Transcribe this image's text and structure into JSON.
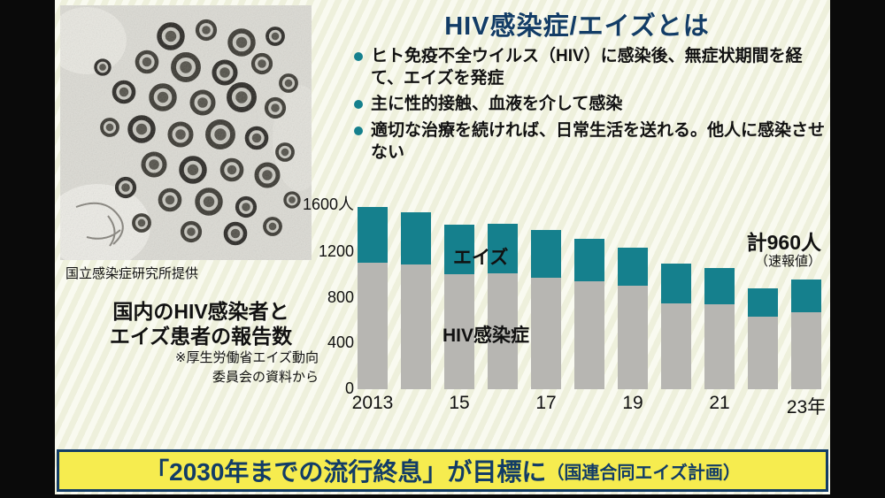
{
  "colors": {
    "accent_teal": "#15808d",
    "bar_gray": "#b7b6b2",
    "title_navy": "#123c66",
    "banner_yellow": "#f6ec4f"
  },
  "header": {
    "title": "HIV感染症/エイズとは"
  },
  "bullets": [
    "ヒト免疫不全ウイルス（HIV）に感染後、無症状期間を経て、エイズを発症",
    "主に性的接触、血液を介して感染",
    "適切な治療を続ければ、日常生活を送れる。他人に感染させない"
  ],
  "photo": {
    "caption": "国立感染症研究所提供"
  },
  "left_panel": {
    "heading_line1": "国内のHIV感染者と",
    "heading_line2": "エイズ患者の報告数",
    "note_line1": "※厚生労働省エイズ動向",
    "note_line2": "委員会の資料から"
  },
  "chart_data": {
    "type": "bar",
    "stacked": true,
    "title": "国内のHIV感染者とエイズ患者の報告数",
    "categories": [
      "2013",
      "2014",
      "2015",
      "2016",
      "2017",
      "2018",
      "2019",
      "2020",
      "2021",
      "2022",
      "2023"
    ],
    "xtick_labels": [
      "2013",
      "",
      "15",
      "",
      "17",
      "",
      "19",
      "",
      "21",
      "",
      "23年"
    ],
    "series": [
      {
        "name": "HIV感染症",
        "color": "#b7b6b2",
        "values": [
          1106,
          1091,
          1006,
          1011,
          976,
          940,
          903,
          750,
          742,
          632,
          669
        ]
      },
      {
        "name": "エイズ",
        "color": "#15808d",
        "values": [
          484,
          455,
          428,
          437,
          413,
          377,
          333,
          345,
          315,
          252,
          291
        ]
      }
    ],
    "ylim": [
      0,
      1600
    ],
    "yticks": [
      {
        "value": 0,
        "label": "0"
      },
      {
        "value": 400,
        "label": "400"
      },
      {
        "value": 800,
        "label": "800"
      },
      {
        "value": 1200,
        "label": "1200"
      },
      {
        "value": 1600,
        "label": "1600人"
      }
    ],
    "annotation": {
      "total_label": "計960人",
      "note_label": "（速報値）"
    },
    "inner_labels": {
      "aids": "エイズ",
      "hiv": "HIV感染症"
    }
  },
  "banner": {
    "main": "「2030年までの流行終息」が目標に",
    "sub": "（国連合同エイズ計画）"
  }
}
